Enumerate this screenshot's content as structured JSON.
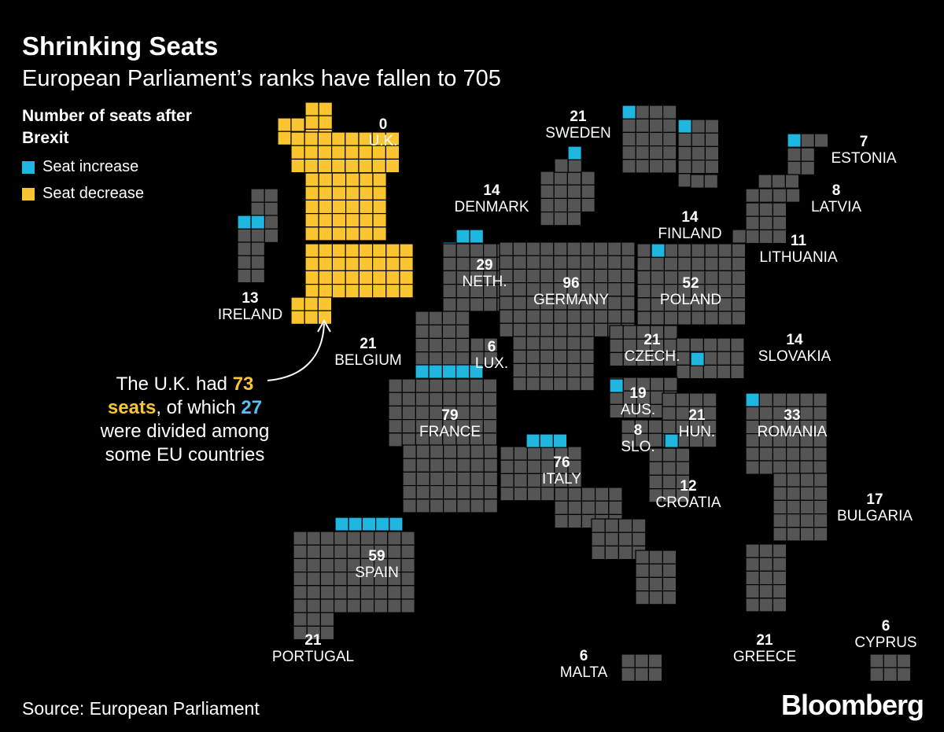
{
  "header": {
    "title": "Shrinking Seats",
    "subtitle": "European Parliament’s ranks have fallen to 705"
  },
  "legend": {
    "heading": "Number of seats after Brexit",
    "items": [
      {
        "label": "Seat increase",
        "color": "#1fb6e0"
      },
      {
        "label": "Seat decrease",
        "color": "#fbc531"
      }
    ]
  },
  "colors": {
    "background": "#000000",
    "base_cell": "#555555",
    "increase": "#1fb6e0",
    "decrease": "#fbc531",
    "grid_line": "#000000"
  },
  "note": {
    "p1": "The U.K. had ",
    "n1": "73",
    "p2": "seats",
    "p3": ", of which ",
    "n2": "27",
    "p4": " were divided among some EU countries"
  },
  "countries": [
    {
      "name": "U.K.",
      "seats": "0"
    },
    {
      "name": "IRELAND",
      "seats": "13"
    },
    {
      "name": "SWEDEN",
      "seats": "21"
    },
    {
      "name": "DENMARK",
      "seats": "14"
    },
    {
      "name": "ESTONIA",
      "seats": "7"
    },
    {
      "name": "LATVIA",
      "seats": "8"
    },
    {
      "name": "FINLAND",
      "seats": "14"
    },
    {
      "name": "LITHUANIA",
      "seats": "11"
    },
    {
      "name": "NETH.",
      "seats": "29"
    },
    {
      "name": "GERMANY",
      "seats": "96"
    },
    {
      "name": "POLAND",
      "seats": "52"
    },
    {
      "name": "BELGIUM",
      "seats": "21"
    },
    {
      "name": "LUX.",
      "seats": "6"
    },
    {
      "name": "CZECH.",
      "seats": "21"
    },
    {
      "name": "SLOVAKIA",
      "seats": "14"
    },
    {
      "name": "AUS.",
      "seats": "19"
    },
    {
      "name": "FRANCE",
      "seats": "79"
    },
    {
      "name": "HUN.",
      "seats": "21"
    },
    {
      "name": "ROMANIA",
      "seats": "33"
    },
    {
      "name": "SLO.",
      "seats": "8"
    },
    {
      "name": "ITALY",
      "seats": "76"
    },
    {
      "name": "CROATIA",
      "seats": "12"
    },
    {
      "name": "BULGARIA",
      "seats": "17"
    },
    {
      "name": "SPAIN",
      "seats": "59"
    },
    {
      "name": "PORTUGAL",
      "seats": "21"
    },
    {
      "name": "GREECE",
      "seats": "21"
    },
    {
      "name": "MALTA",
      "seats": "6"
    },
    {
      "name": "CYPRUS",
      "seats": "6"
    }
  ],
  "source": "Source: European Parliament",
  "brand": "Bloomberg"
}
